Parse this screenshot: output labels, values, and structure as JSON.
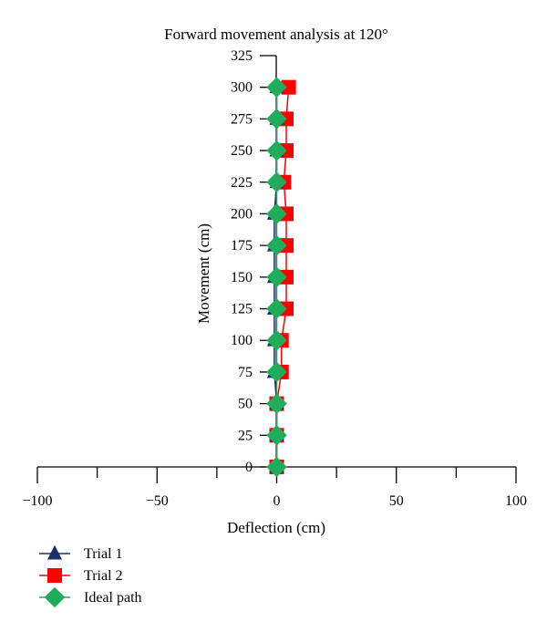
{
  "chart_data": {
    "type": "line",
    "title": "Forward movement analysis at 120°",
    "xlabel": "Deflection (cm)",
    "ylabel": "Movement (cm)",
    "xlim": [
      -100,
      100
    ],
    "ylim": [
      0,
      325
    ],
    "x_ticks": [
      -100,
      -50,
      0,
      50,
      100
    ],
    "x_tick_labels": [
      "−100",
      "−50",
      "0",
      "50",
      "100"
    ],
    "y_ticks": [
      0,
      25,
      50,
      75,
      100,
      125,
      150,
      175,
      200,
      225,
      250,
      275,
      300,
      325
    ],
    "y_tick_labels": [
      "0",
      "25",
      "50",
      "75",
      "100",
      "125",
      "150",
      "175",
      "200",
      "225",
      "250",
      "275",
      "300",
      "325"
    ],
    "grid": false,
    "legend_position": "bottom-left",
    "series": [
      {
        "name": "Trial 1",
        "marker": "triangle",
        "color": "#1a2f6b",
        "points": [
          [
            0,
            0
          ],
          [
            0,
            25
          ],
          [
            0,
            50
          ],
          [
            -1,
            75
          ],
          [
            -1,
            100
          ],
          [
            -1,
            125
          ],
          [
            -1,
            150
          ],
          [
            -1,
            175
          ],
          [
            -1,
            200
          ],
          [
            0,
            225
          ],
          [
            0,
            250
          ],
          [
            0,
            275
          ],
          [
            0,
            300
          ]
        ]
      },
      {
        "name": "Trial 2",
        "marker": "square",
        "color": "#ff0000",
        "points": [
          [
            0,
            0
          ],
          [
            0,
            25
          ],
          [
            0,
            50
          ],
          [
            2,
            75
          ],
          [
            2,
            100
          ],
          [
            4,
            125
          ],
          [
            4,
            150
          ],
          [
            4,
            175
          ],
          [
            4,
            200
          ],
          [
            3,
            225
          ],
          [
            4,
            250
          ],
          [
            4,
            275
          ],
          [
            5,
            300
          ]
        ]
      },
      {
        "name": "Ideal path",
        "marker": "diamond",
        "color": "#1fad5b",
        "points": [
          [
            0,
            0
          ],
          [
            0,
            25
          ],
          [
            0,
            50
          ],
          [
            0,
            75
          ],
          [
            0,
            100
          ],
          [
            0,
            125
          ],
          [
            0,
            150
          ],
          [
            0,
            175
          ],
          [
            0,
            200
          ],
          [
            0,
            225
          ],
          [
            0,
            250
          ],
          [
            0,
            275
          ],
          [
            0,
            300
          ]
        ]
      }
    ]
  }
}
